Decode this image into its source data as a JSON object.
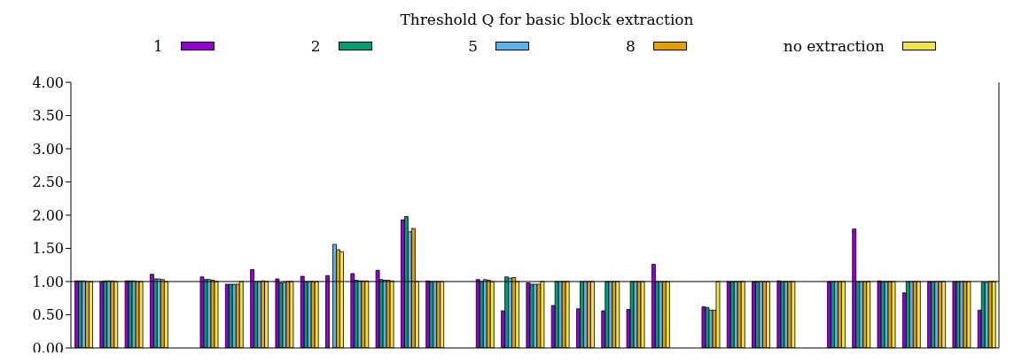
{
  "chart_data": {
    "type": "bar",
    "legend_title": "Threshold Q for basic block extraction",
    "legend": "top",
    "categories": [
      null,
      null,
      null,
      null,
      null,
      null,
      null,
      null,
      null,
      null,
      null,
      null,
      null,
      null,
      null,
      null,
      null,
      null,
      null,
      null,
      null,
      null,
      null,
      null,
      null,
      null,
      null,
      null,
      null,
      null,
      null,
      null,
      null,
      null,
      null,
      null,
      null
    ],
    "series": [
      {
        "name": "1",
        "color": "#9400d3",
        "values": [
          1.01,
          1.0,
          1.01,
          1.11,
          null,
          1.07,
          0.96,
          1.18,
          1.04,
          1.08,
          1.09,
          1.12,
          1.17,
          1.93,
          1.01,
          null,
          1.03,
          0.56,
          0.98,
          0.64,
          0.59,
          0.56,
          0.58,
          1.26,
          null,
          0.62,
          1.0,
          1.0,
          1.01,
          null,
          1.0,
          1.79,
          1.01,
          0.83,
          1.0,
          1.0,
          0.57
        ]
      },
      {
        "name": "2",
        "color": "#009e73",
        "values": [
          1.01,
          1.01,
          1.01,
          1.04,
          null,
          1.03,
          0.96,
          1.0,
          0.98,
          1.0,
          null,
          1.02,
          1.03,
          1.98,
          1.0,
          null,
          1.0,
          1.07,
          0.96,
          1.0,
          1.0,
          1.0,
          1.0,
          1.0,
          null,
          0.61,
          1.0,
          1.0,
          1.0,
          null,
          1.0,
          1.0,
          1.0,
          1.0,
          1.0,
          1.0,
          0.99
        ]
      },
      {
        "name": "5",
        "color": "#56b4e9",
        "values": [
          1.01,
          1.01,
          1.01,
          1.04,
          null,
          1.03,
          0.96,
          1.0,
          0.99,
          1.0,
          1.56,
          1.01,
          1.02,
          1.75,
          1.0,
          null,
          1.03,
          1.05,
          0.96,
          1.0,
          1.0,
          1.0,
          1.0,
          1.0,
          null,
          0.57,
          1.0,
          1.0,
          1.0,
          null,
          1.0,
          1.0,
          1.0,
          1.0,
          1.0,
          1.0,
          0.99
        ]
      },
      {
        "name": "8",
        "color": "#e69f00",
        "values": [
          1.0,
          1.01,
          1.0,
          1.03,
          null,
          1.02,
          0.96,
          1.01,
          1.0,
          1.0,
          1.48,
          1.01,
          1.02,
          1.8,
          1.0,
          null,
          1.02,
          1.06,
          0.96,
          1.0,
          1.0,
          1.0,
          1.0,
          1.0,
          null,
          0.57,
          1.0,
          1.0,
          1.0,
          null,
          1.0,
          1.0,
          1.0,
          1.0,
          1.0,
          1.0,
          1.0
        ]
      },
      {
        "name": "no extraction",
        "color": "#f0e442",
        "values": [
          1.0,
          1.0,
          1.0,
          1.0,
          null,
          1.0,
          1.0,
          1.0,
          1.0,
          1.0,
          1.45,
          1.01,
          1.01,
          1.0,
          1.0,
          null,
          1.0,
          1.0,
          1.0,
          1.0,
          1.0,
          1.0,
          1.0,
          1.0,
          null,
          1.0,
          1.0,
          1.0,
          1.0,
          null,
          1.0,
          1.0,
          1.0,
          1.0,
          1.0,
          1.0,
          1.0
        ]
      }
    ],
    "ylim": [
      0,
      4
    ],
    "yticks": [
      {
        "value": 0,
        "label": "0.00"
      },
      {
        "value": 0.5,
        "label": "0.50"
      },
      {
        "value": 1,
        "label": "1.00"
      },
      {
        "value": 1.5,
        "label": "1.50"
      },
      {
        "value": 2,
        "label": "2.00"
      },
      {
        "value": 2.5,
        "label": "2.50"
      },
      {
        "value": 3,
        "label": "3.00"
      },
      {
        "value": 3.5,
        "label": "3.50"
      },
      {
        "value": 4,
        "label": "4.00"
      }
    ],
    "ref_lines": [
      {
        "axis": "y",
        "value": 1,
        "color": "#000000"
      }
    ]
  }
}
